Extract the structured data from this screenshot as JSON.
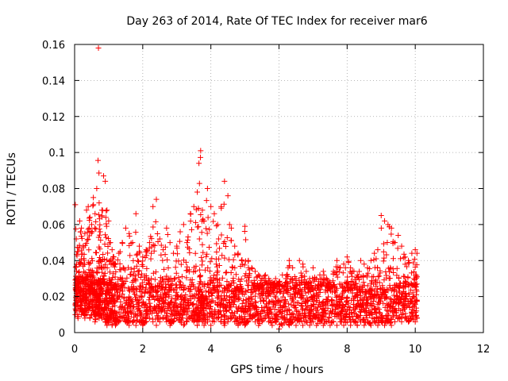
{
  "chart_data": {
    "type": "scatter",
    "title": "Day 263 of 2014, Rate Of TEC Index for receiver mar6",
    "xlabel": "GPS time / hours",
    "ylabel": "ROTI / TECUs",
    "xlim": [
      0,
      12
    ],
    "ylim": [
      0,
      0.16
    ],
    "x_ticks": [
      0,
      2,
      4,
      6,
      8,
      10,
      12
    ],
    "x_tick_labels": [
      "0",
      "2",
      "4",
      "6",
      "8",
      "10",
      "12"
    ],
    "y_ticks": [
      0,
      0.02,
      0.04,
      0.06,
      0.08,
      0.1,
      0.12,
      0.14,
      0.16
    ],
    "y_tick_labels": [
      "0",
      "0.02",
      "0.04",
      "0.06",
      "0.08",
      "0.1",
      "0.12",
      "0.14",
      "0.16"
    ],
    "grid": true,
    "marker": "+",
    "series": [
      {
        "name": "ROTI",
        "color": "#ff0000",
        "x": [
          0.02,
          0.05,
          0.1,
          0.15,
          0.2,
          0.25,
          0.3,
          0.35,
          0.4,
          0.45,
          0.5,
          0.55,
          0.6,
          0.65,
          0.7,
          0.72,
          0.75,
          0.8,
          0.85,
          0.9,
          0.95,
          1.0,
          1.05,
          1.1,
          1.15,
          1.2,
          1.3,
          1.4,
          1.5,
          1.6,
          1.7,
          1.8,
          1.9,
          2.0,
          2.1,
          2.2,
          2.3,
          2.4,
          2.5,
          2.6,
          2.7,
          2.8,
          2.9,
          3.0,
          3.1,
          3.2,
          3.3,
          3.4,
          3.5,
          3.6,
          3.65,
          3.7,
          3.75,
          3.8,
          3.9,
          4.0,
          4.1,
          4.2,
          4.3,
          4.4,
          4.5,
          4.6,
          4.7,
          4.8,
          4.9,
          5.0,
          5.1,
          5.2,
          5.3,
          5.4,
          5.5,
          5.6,
          5.7,
          5.8,
          5.9,
          6.0,
          6.1,
          6.2,
          6.3,
          6.4,
          6.5,
          6.6,
          6.7,
          6.8,
          6.9,
          7.0,
          7.1,
          7.2,
          7.3,
          7.4,
          7.5,
          7.6,
          7.7,
          7.8,
          7.9,
          8.0,
          8.1,
          8.2,
          8.3,
          8.4,
          8.5,
          8.6,
          8.7,
          8.8,
          8.9,
          9.0,
          9.1,
          9.2,
          9.3,
          9.4,
          9.5,
          9.6,
          9.7,
          9.8,
          9.9,
          10.0,
          10.05
        ],
        "y": [
          0.071,
          0.052,
          0.045,
          0.062,
          0.058,
          0.048,
          0.055,
          0.068,
          0.07,
          0.064,
          0.06,
          0.075,
          0.066,
          0.08,
          0.158,
          0.072,
          0.056,
          0.068,
          0.087,
          0.084,
          0.068,
          0.062,
          0.05,
          0.046,
          0.042,
          0.038,
          0.044,
          0.05,
          0.058,
          0.055,
          0.05,
          0.066,
          0.048,
          0.042,
          0.046,
          0.05,
          0.07,
          0.074,
          0.052,
          0.046,
          0.058,
          0.05,
          0.044,
          0.048,
          0.056,
          0.06,
          0.05,
          0.066,
          0.07,
          0.078,
          0.094,
          0.101,
          0.068,
          0.062,
          0.08,
          0.07,
          0.066,
          0.06,
          0.07,
          0.084,
          0.076,
          0.058,
          0.048,
          0.044,
          0.04,
          0.059,
          0.04,
          0.036,
          0.034,
          0.032,
          0.03,
          0.032,
          0.03,
          0.028,
          0.03,
          0.028,
          0.032,
          0.03,
          0.04,
          0.036,
          0.03,
          0.04,
          0.038,
          0.034,
          0.03,
          0.036,
          0.03,
          0.032,
          0.034,
          0.03,
          0.028,
          0.034,
          0.04,
          0.036,
          0.038,
          0.042,
          0.036,
          0.034,
          0.032,
          0.04,
          0.038,
          0.036,
          0.04,
          0.044,
          0.046,
          0.065,
          0.062,
          0.06,
          0.058,
          0.05,
          0.054,
          0.048,
          0.042,
          0.04,
          0.044,
          0.046,
          0.044
        ],
        "y_low": [
          0.01,
          0.012,
          0.008,
          0.012,
          0.01,
          0.012,
          0.008,
          0.01,
          0.012,
          0.008,
          0.01,
          0.012,
          0.006,
          0.01,
          0.01,
          0.008,
          0.01,
          0.008,
          0.01,
          0.006,
          0.004,
          0.006,
          0.008,
          0.004,
          0.006,
          0.004,
          0.006,
          0.008,
          0.006,
          0.004,
          0.006,
          0.004,
          0.006,
          0.004,
          0.006,
          0.008,
          0.006,
          0.004,
          0.006,
          0.008,
          0.006,
          0.004,
          0.006,
          0.008,
          0.006,
          0.004,
          0.006,
          0.008,
          0.006,
          0.004,
          0.006,
          0.008,
          0.006,
          0.004,
          0.006,
          0.004,
          0.006,
          0.008,
          0.006,
          0.004,
          0.006,
          0.008,
          0.006,
          0.004,
          0.006,
          0.004,
          0.006,
          0.008,
          0.006,
          0.004,
          0.006,
          0.008,
          0.006,
          0.004,
          0.006,
          0.002,
          0.004,
          0.006,
          0.004,
          0.006,
          0.004,
          0.006,
          0.004,
          0.006,
          0.004,
          0.006,
          0.004,
          0.006,
          0.004,
          0.006,
          0.004,
          0.006,
          0.004,
          0.006,
          0.004,
          0.006,
          0.004,
          0.006,
          0.004,
          0.006,
          0.004,
          0.006,
          0.004,
          0.006,
          0.004,
          0.006,
          0.004,
          0.006,
          0.004,
          0.006,
          0.008,
          0.006,
          0.008,
          0.006,
          0.008,
          0.006,
          0.008
        ]
      }
    ]
  }
}
